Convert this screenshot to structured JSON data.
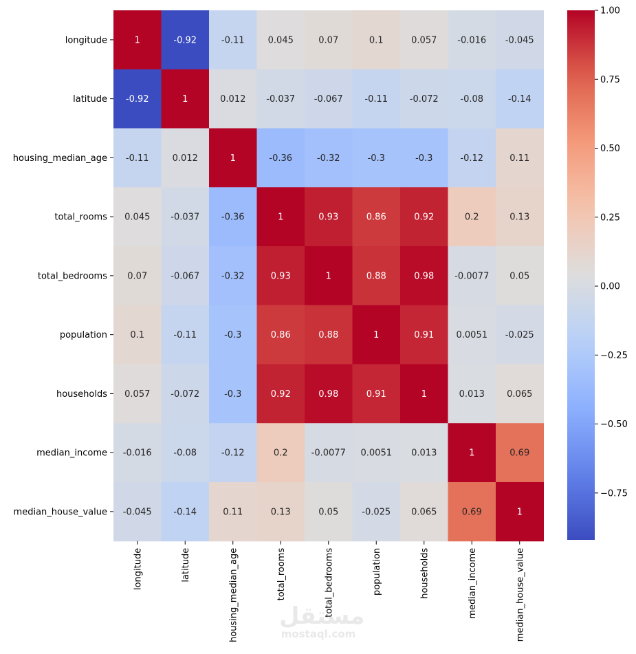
{
  "chart_data": {
    "type": "heatmap",
    "colormap": "coolwarm",
    "variables": [
      "longitude",
      "latitude",
      "housing_median_age",
      "total_rooms",
      "total_bedrooms",
      "population",
      "households",
      "median_income",
      "median_house_value"
    ],
    "values": [
      [
        1,
        -0.92,
        -0.11,
        0.045,
        0.07,
        0.1,
        0.057,
        -0.016,
        -0.045
      ],
      [
        -0.92,
        1,
        0.012,
        -0.037,
        -0.067,
        -0.11,
        -0.072,
        -0.08,
        -0.14
      ],
      [
        -0.11,
        0.012,
        1,
        -0.36,
        -0.32,
        -0.3,
        -0.3,
        -0.12,
        0.11
      ],
      [
        0.045,
        -0.037,
        -0.36,
        1,
        0.93,
        0.86,
        0.92,
        0.2,
        0.13
      ],
      [
        0.07,
        -0.067,
        -0.32,
        0.93,
        1,
        0.88,
        0.98,
        -0.0077,
        0.05
      ],
      [
        0.1,
        -0.11,
        -0.3,
        0.86,
        0.88,
        1,
        0.91,
        0.0051,
        -0.025
      ],
      [
        0.057,
        -0.072,
        -0.3,
        0.92,
        0.98,
        0.91,
        1,
        0.013,
        0.065
      ],
      [
        -0.016,
        -0.08,
        -0.12,
        0.2,
        -0.0077,
        0.0051,
        0.013,
        1,
        0.69
      ],
      [
        -0.045,
        -0.14,
        0.11,
        0.13,
        0.05,
        -0.025,
        0.065,
        0.69,
        1
      ]
    ],
    "colorbar": {
      "min": -0.92,
      "max": 1.0,
      "ticks": [
        1.0,
        0.75,
        0.5,
        0.25,
        0.0,
        -0.25,
        -0.5,
        -0.75
      ],
      "tick_labels": [
        "1.00",
        "0.75",
        "0.50",
        "0.25",
        "0.00",
        "−0.25",
        "−0.50",
        "−0.75"
      ]
    },
    "annotated": true
  },
  "watermark": {
    "arabic": "مستقل",
    "latin": "mostaql.com"
  }
}
